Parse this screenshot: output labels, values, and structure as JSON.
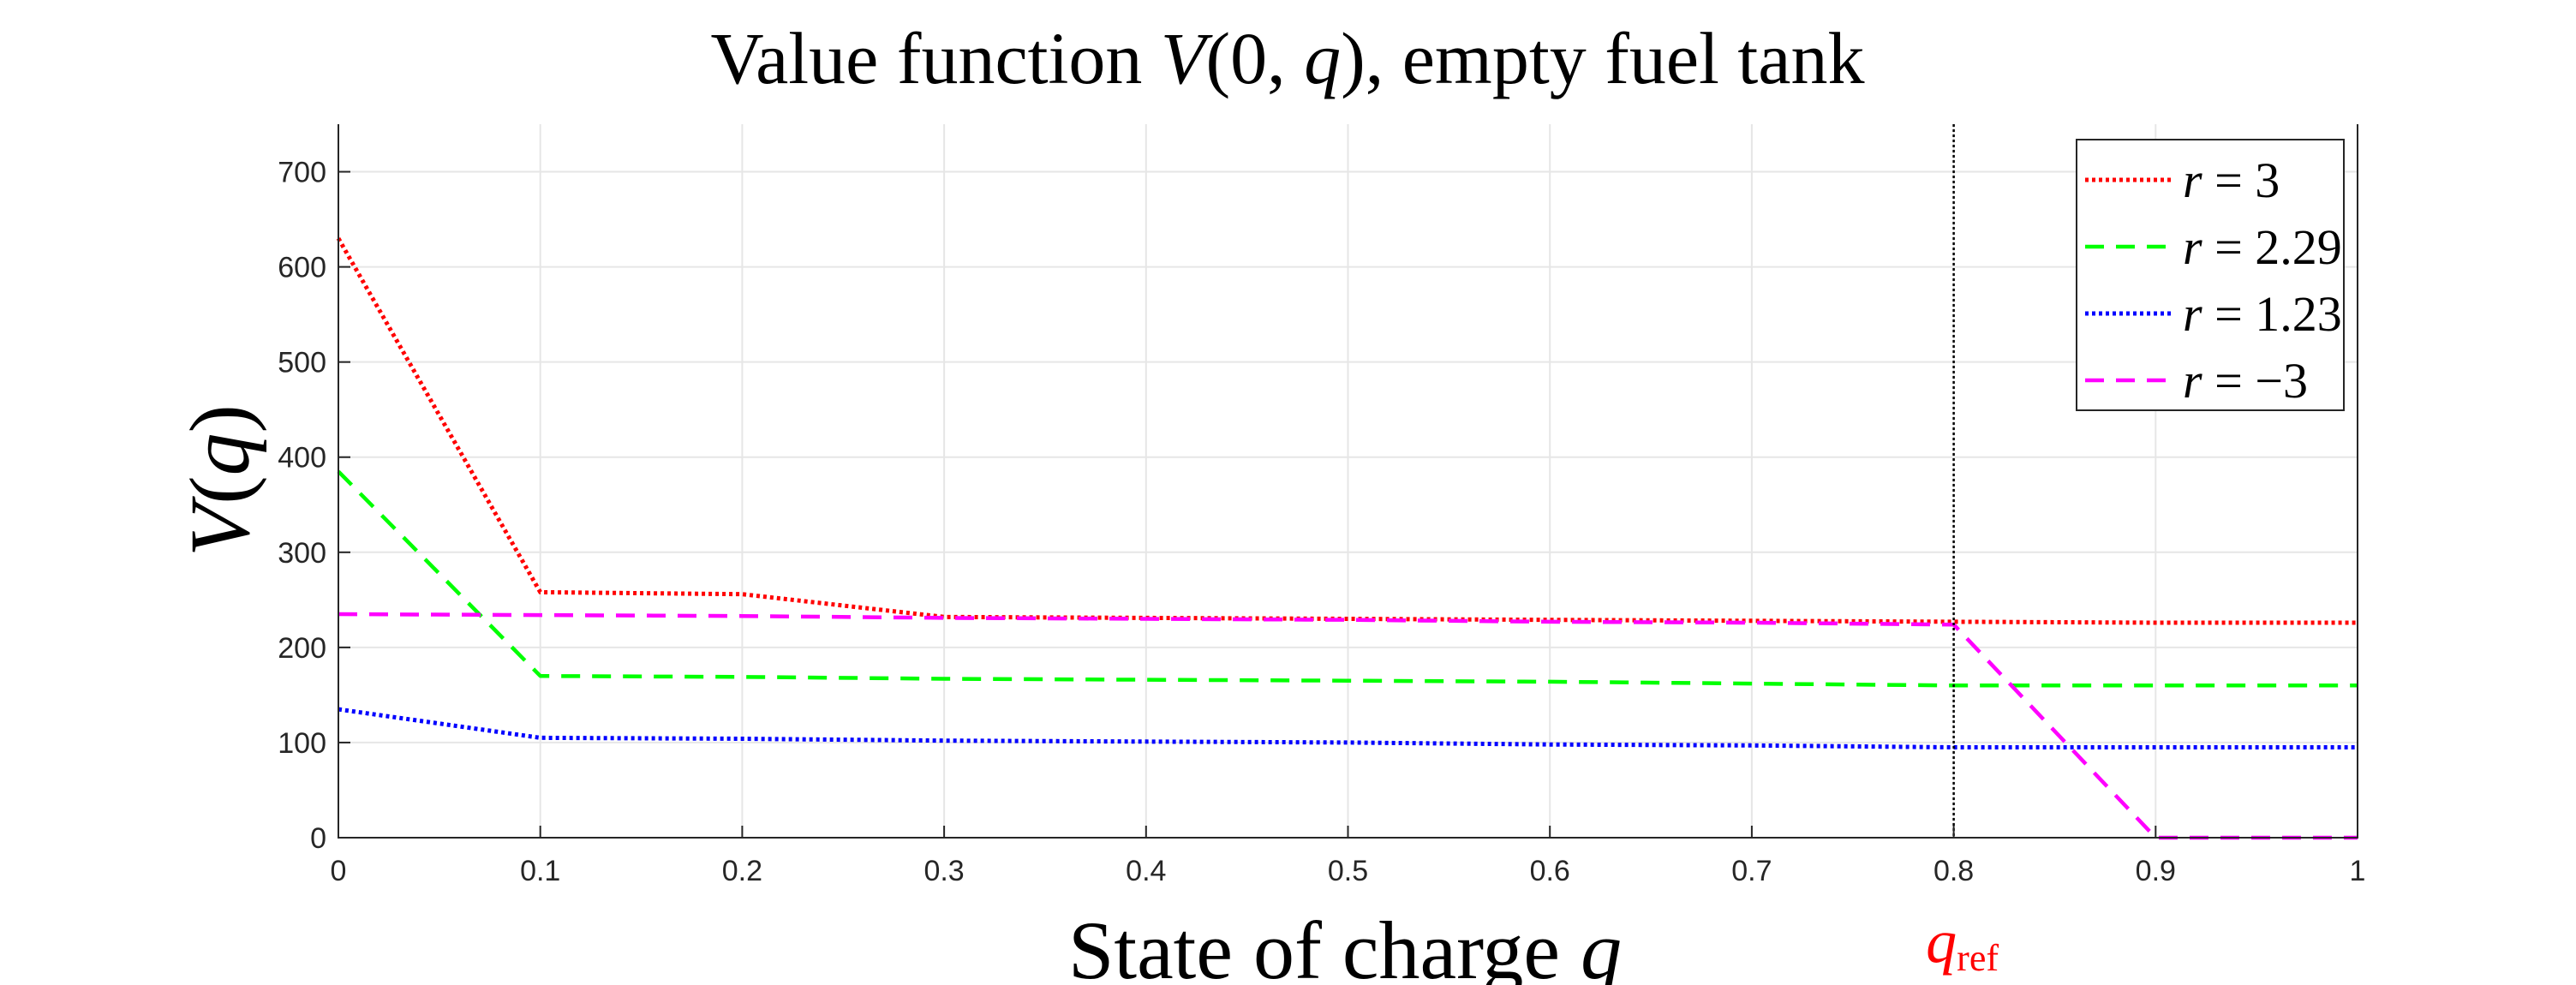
{
  "chart_data": {
    "type": "line",
    "title": {
      "prefix": "Value function ",
      "func": "V",
      "args": "(0, ",
      "q": "q",
      "suffix": "), empty fuel tank"
    },
    "xlabel": {
      "text": "State of charge ",
      "var": "q"
    },
    "ylabel": {
      "func": "V",
      "open": "(",
      "var": "q",
      "close": ")"
    },
    "xlim": [
      0,
      1
    ],
    "ylim": [
      0,
      750
    ],
    "xticks": [
      0,
      0.1,
      0.2,
      0.3,
      0.4,
      0.5,
      0.6,
      0.7,
      0.8,
      0.9,
      1
    ],
    "xtick_labels": [
      "0",
      "0.1",
      "0.2",
      "0.3",
      "0.4",
      "0.5",
      "0.6",
      "0.7",
      "0.8",
      "0.9",
      "1"
    ],
    "yticks": [
      0,
      100,
      200,
      300,
      400,
      500,
      600,
      700
    ],
    "ytick_labels": [
      "0",
      "100",
      "200",
      "300",
      "400",
      "500",
      "600",
      "700"
    ],
    "grid": true,
    "legend_position": "top-right",
    "reference_line": {
      "x": 0.8,
      "label_var": "q",
      "label_sub": "ref",
      "color": "#ff0000"
    },
    "series": [
      {
        "name_var": "r",
        "name_rest": " = 3",
        "color": "#ff0000",
        "dash": "dotted",
        "x": [
          0,
          0.1,
          0.2,
          0.3,
          0.4,
          0.5,
          0.6,
          0.7,
          0.8,
          0.9,
          1.0
        ],
        "y": [
          630,
          258,
          256,
          232,
          231,
          230,
          229,
          228,
          227,
          226,
          226
        ]
      },
      {
        "name_var": "r",
        "name_rest": " = 2.29",
        "color": "#00ff00",
        "dash": "dashed",
        "x": [
          0,
          0.1,
          0.2,
          0.3,
          0.4,
          0.5,
          0.6,
          0.7,
          0.8,
          0.9,
          1.0
        ],
        "y": [
          385,
          170,
          169,
          167,
          166,
          165,
          164,
          162,
          160,
          160,
          160
        ]
      },
      {
        "name_var": "r",
        "name_rest": " = 1.23",
        "color": "#0000ff",
        "dash": "dotted",
        "x": [
          0,
          0.1,
          0.2,
          0.3,
          0.4,
          0.5,
          0.6,
          0.7,
          0.8,
          0.9,
          1.0
        ],
        "y": [
          135,
          105,
          104,
          102,
          101,
          100,
          98,
          97,
          95,
          95,
          95
        ]
      },
      {
        "name_var": "r",
        "name_rest": " = −3",
        "color": "#ff00ff",
        "dash": "dashed",
        "x": [
          0,
          0.1,
          0.2,
          0.3,
          0.4,
          0.5,
          0.6,
          0.7,
          0.8,
          0.9,
          1.0
        ],
        "y": [
          235,
          234,
          233,
          231,
          230,
          229,
          227,
          226,
          224,
          0,
          0
        ]
      }
    ]
  }
}
